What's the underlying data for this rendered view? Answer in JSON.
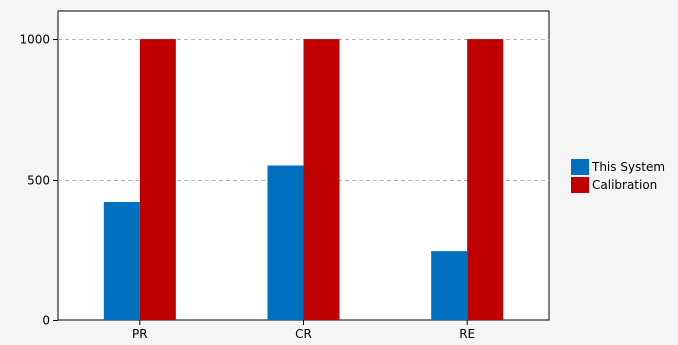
{
  "chart_data": {
    "type": "bar",
    "categories": [
      "PR",
      "CR",
      "RE"
    ],
    "series": [
      {
        "name": "This System",
        "color": "#0070c0",
        "values": [
          420,
          550,
          245
        ]
      },
      {
        "name": "Calibration",
        "color": "#c00000",
        "values": [
          1000,
          1000,
          1000
        ]
      }
    ],
    "ylim": [
      0,
      1100
    ],
    "yticks": [
      0,
      500,
      1000
    ],
    "ytick_labels": [
      "0",
      "500",
      "1000"
    ],
    "grid": "horizontal-dashed",
    "legend_position": "right"
  }
}
